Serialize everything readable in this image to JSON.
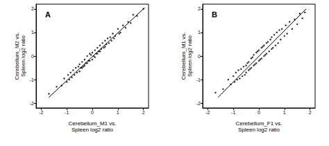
{
  "chart_data": [
    {
      "type": "scatter",
      "title": "A",
      "xlabel": "Cerebellum_M1 vs.\nSpleen log2 ratio",
      "ylabel": "Cerebellum_M2 vs.\nSpleen log2 ratio",
      "xlim": [
        -2.2,
        2.2
      ],
      "ylim": [
        -2.2,
        2.2
      ],
      "xticks": [
        -2,
        -1,
        0,
        1,
        2
      ],
      "yticks": [
        -2,
        -1,
        0,
        1,
        2
      ],
      "grid": false,
      "series": [
        {
          "type": "scatter",
          "color": "#000000",
          "marker": "circle",
          "x": [
            -1.7,
            -1.4,
            -1.2,
            -1.1,
            -1.0,
            -0.95,
            -0.9,
            -0.85,
            -0.8,
            -0.75,
            -0.7,
            -0.65,
            -0.6,
            -0.55,
            -0.5,
            -0.5,
            -0.45,
            -0.4,
            -0.4,
            -0.35,
            -0.3,
            -0.3,
            -0.25,
            -0.2,
            -0.2,
            -0.15,
            -0.1,
            -0.1,
            -0.05,
            0,
            0,
            0.05,
            0.1,
            0.1,
            0.15,
            0.2,
            0.2,
            0.25,
            0.3,
            0.3,
            0.35,
            0.4,
            0.45,
            0.5,
            0.5,
            0.55,
            0.6,
            0.65,
            0.7,
            0.75,
            0.8,
            0.85,
            0.9,
            1.0,
            1.05,
            1.1,
            1.2,
            1.3,
            1.4,
            1.5,
            1.6,
            1.75,
            2.0
          ],
          "values": [
            -1.6,
            -1.3,
            -1.25,
            -0.95,
            -1.1,
            -0.8,
            -1.0,
            -0.7,
            -0.9,
            -0.6,
            -0.8,
            -0.5,
            -0.7,
            -0.45,
            -0.65,
            -0.35,
            -0.5,
            -0.25,
            -0.5,
            -0.45,
            -0.15,
            -0.4,
            -0.3,
            0.0,
            -0.3,
            -0.2,
            0.1,
            -0.2,
            0.05,
            0.15,
            -0.15,
            0.0,
            0.25,
            -0.05,
            0.1,
            0.35,
            0.1,
            0.2,
            0.45,
            0.2,
            0.3,
            0.55,
            0.35,
            0.65,
            0.4,
            0.5,
            0.75,
            0.55,
            0.8,
            0.65,
            0.95,
            0.75,
            0.85,
            1.15,
            0.95,
            1.0,
            1.3,
            1.2,
            1.45,
            1.4,
            1.75,
            1.7,
            2.0
          ]
        },
        {
          "type": "line",
          "color": "#000000",
          "line_style": "solid",
          "x": [
            -1.7,
            2.05
          ],
          "values": [
            -1.75,
            2.05
          ]
        }
      ]
    },
    {
      "type": "scatter",
      "title": "B",
      "xlabel": "Cerebellum_F1 vs.\nSpleen log2 ratio",
      "ylabel": "Cerebellum_M1 vs.\nSpleen log2 ratio",
      "xlim": [
        -2.2,
        2.2
      ],
      "ylim": [
        -2.2,
        2.2
      ],
      "xticks": [
        -2,
        -1,
        0,
        1,
        2
      ],
      "yticks": [
        -2,
        -1,
        0,
        1,
        2
      ],
      "grid": false,
      "series": [
        {
          "type": "scatter",
          "color": "#000000",
          "marker": "circle",
          "x": [
            -1.7,
            -1.4,
            -1.2,
            -1.1,
            -1.0,
            -0.95,
            -0.9,
            -0.85,
            -0.8,
            -0.75,
            -0.7,
            -0.65,
            -0.6,
            -0.55,
            -0.5,
            -0.5,
            -0.45,
            -0.4,
            -0.4,
            -0.35,
            -0.3,
            -0.3,
            -0.25,
            -0.2,
            -0.2,
            -0.15,
            -0.1,
            -0.1,
            -0.05,
            0,
            0,
            0.05,
            0.1,
            0.1,
            0.15,
            0.2,
            0.2,
            0.25,
            0.3,
            0.3,
            0.35,
            0.4,
            0.45,
            0.5,
            0.5,
            0.55,
            0.6,
            0.65,
            0.7,
            0.75,
            0.8,
            0.85,
            0.9,
            1.0,
            1.05,
            1.1,
            1.2,
            1.3,
            1.4,
            1.5,
            1.6,
            1.7,
            1.8
          ],
          "values": [
            -1.55,
            -1.4,
            -1.0,
            -1.2,
            -0.85,
            -1.1,
            -0.7,
            -1.0,
            -0.6,
            -0.95,
            -0.55,
            -0.85,
            -0.45,
            -0.8,
            -0.4,
            -0.7,
            -0.3,
            -0.6,
            -0.25,
            -0.55,
            -0.1,
            -0.5,
            -0.05,
            -0.4,
            0.05,
            -0.35,
            0.15,
            -0.3,
            0.2,
            -0.2,
            0.25,
            -0.15,
            0.35,
            -0.1,
            0.4,
            0.0,
            0.45,
            0.05,
            0.55,
            0.1,
            0.6,
            0.2,
            0.7,
            0.3,
            0.8,
            0.35,
            0.9,
            0.45,
            1.0,
            0.55,
            1.1,
            0.7,
            1.15,
            0.85,
            1.3,
            0.95,
            1.45,
            1.15,
            1.55,
            1.35,
            1.8,
            1.6,
            1.85
          ]
        },
        {
          "type": "line",
          "color": "#000000",
          "line_style": "solid",
          "x": [
            -1.6,
            1.85
          ],
          "values": [
            -1.75,
            2.0
          ]
        }
      ]
    }
  ]
}
